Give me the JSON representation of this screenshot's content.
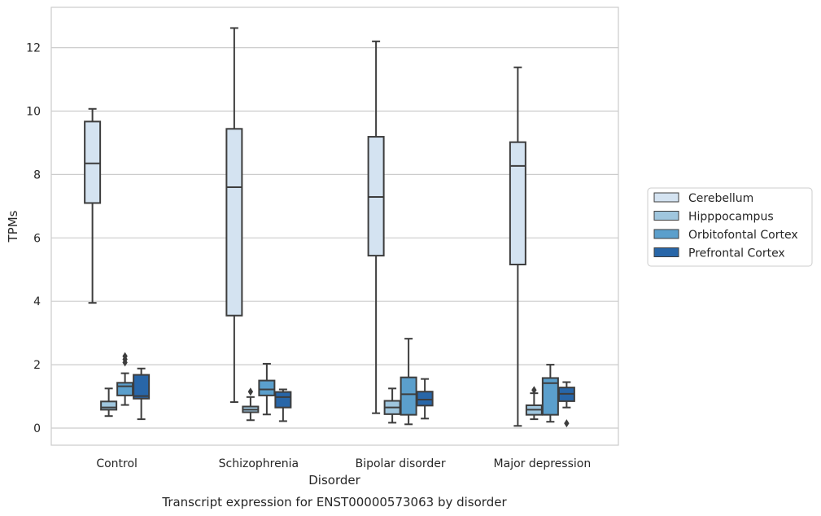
{
  "chart_data": {
    "type": "box",
    "caption": "Transcript expression for ENST00000573063 by disorder",
    "xlabel": "Disorder",
    "ylabel": "TPMs",
    "ylim": [
      -0.55,
      13.2
    ],
    "yticks": [
      0,
      2,
      4,
      6,
      8,
      10,
      12
    ],
    "grid": "horizontal",
    "legend_placement": "right",
    "categories": [
      "Control",
      "Schizophrenia",
      "Bipolar disorder",
      "Major depression"
    ],
    "series": [
      {
        "name": "Cerebellum",
        "color": "#d4e3f1",
        "boxes": [
          {
            "whislo": 3.95,
            "q1": 7.1,
            "med": 8.35,
            "q3": 9.67,
            "whishi": 10.07,
            "fliers": []
          },
          {
            "whislo": 0.82,
            "q1": 3.55,
            "med": 7.6,
            "q3": 9.44,
            "whishi": 12.62,
            "fliers": []
          },
          {
            "whislo": 0.47,
            "q1": 5.44,
            "med": 7.29,
            "q3": 9.19,
            "whishi": 12.2,
            "fliers": []
          },
          {
            "whislo": 0.07,
            "q1": 5.16,
            "med": 8.27,
            "q3": 9.02,
            "whishi": 11.38,
            "fliers": []
          }
        ]
      },
      {
        "name": "Hipppocampus",
        "color": "#9fc6de",
        "boxes": [
          {
            "whislo": 0.38,
            "q1": 0.58,
            "med": 0.65,
            "q3": 0.84,
            "whishi": 1.25,
            "fliers": []
          },
          {
            "whislo": 0.25,
            "q1": 0.5,
            "med": 0.58,
            "q3": 0.68,
            "whishi": 0.98,
            "fliers": [
              1.15
            ]
          },
          {
            "whislo": 0.17,
            "q1": 0.44,
            "med": 0.65,
            "q3": 0.86,
            "whishi": 1.25,
            "fliers": []
          },
          {
            "whislo": 0.28,
            "q1": 0.42,
            "med": 0.58,
            "q3": 0.72,
            "whishi": 1.1,
            "fliers": [
              1.2
            ]
          }
        ]
      },
      {
        "name": "Orbitofontal Cortex",
        "color": "#5b9fcc",
        "boxes": [
          {
            "whislo": 0.73,
            "q1": 1.03,
            "med": 1.32,
            "q3": 1.43,
            "whishi": 1.73,
            "fliers": [
              2.07,
              2.17,
              2.27
            ]
          },
          {
            "whislo": 0.43,
            "q1": 1.03,
            "med": 1.22,
            "q3": 1.5,
            "whishi": 2.03,
            "fliers": []
          },
          {
            "whislo": 0.12,
            "q1": 0.42,
            "med": 1.07,
            "q3": 1.6,
            "whishi": 2.82,
            "fliers": []
          },
          {
            "whislo": 0.2,
            "q1": 0.42,
            "med": 1.42,
            "q3": 1.58,
            "whishi": 2.0,
            "fliers": []
          }
        ]
      },
      {
        "name": "Prefrontal Cortex",
        "color": "#2866a8",
        "boxes": [
          {
            "whislo": 0.28,
            "q1": 0.93,
            "med": 1.01,
            "q3": 1.68,
            "whishi": 1.88,
            "fliers": []
          },
          {
            "whislo": 0.22,
            "q1": 0.65,
            "med": 0.98,
            "q3": 1.14,
            "whishi": 1.22,
            "fliers": []
          },
          {
            "whislo": 0.3,
            "q1": 0.71,
            "med": 0.9,
            "q3": 1.15,
            "whishi": 1.55,
            "fliers": []
          },
          {
            "whislo": 0.65,
            "q1": 0.85,
            "med": 1.08,
            "q3": 1.28,
            "whishi": 1.45,
            "fliers": [
              0.15
            ]
          }
        ]
      }
    ]
  }
}
